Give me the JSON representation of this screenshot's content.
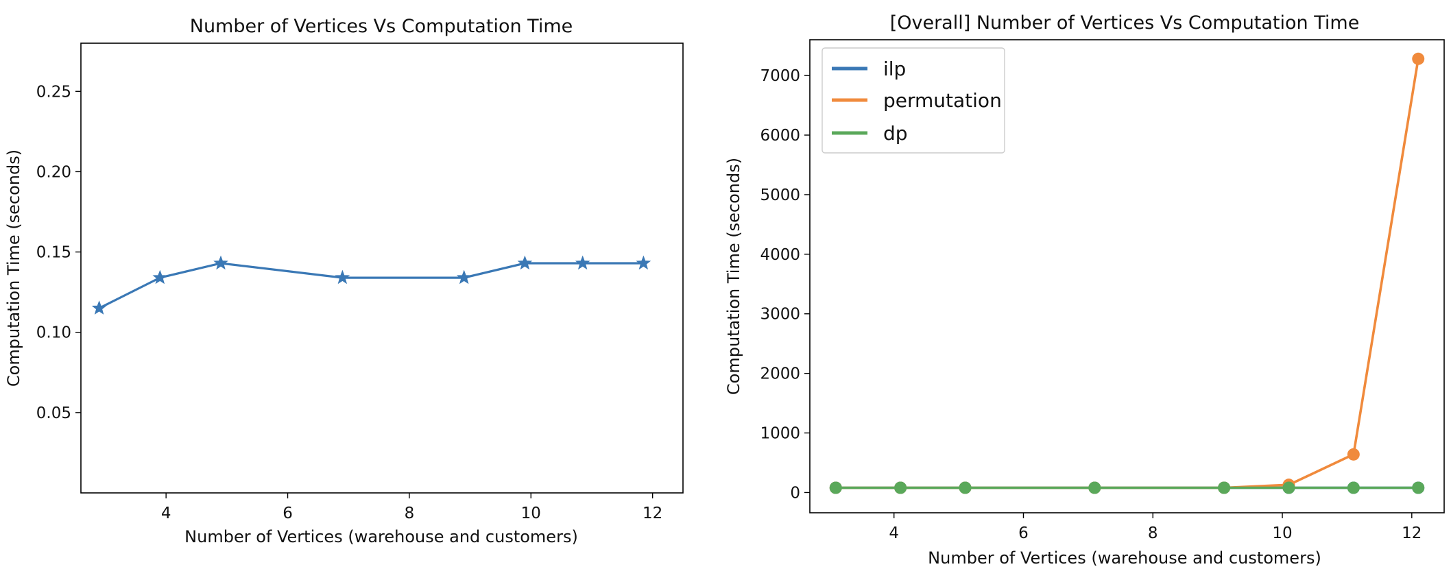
{
  "chart_data": [
    {
      "type": "line",
      "title": "Number of Vertices Vs Computation Time",
      "xlabel": "Number of Vertices (warehouse and customers)",
      "ylabel": "Computation Time (seconds)",
      "xlim": [
        2.6,
        12.5
      ],
      "ylim": [
        0.0,
        0.28
      ],
      "xticks": [
        4,
        6,
        8,
        10,
        12
      ],
      "yticks": [
        0.05,
        0.1,
        0.15,
        0.2,
        0.25
      ],
      "ytick_labels": [
        "0.05",
        "0.10",
        "0.15",
        "0.20",
        "0.25"
      ],
      "marker": "star",
      "color": "#3a78b5",
      "series": [
        {
          "x": [
            2.9,
            3.9,
            4.9,
            6.9,
            8.9,
            9.9,
            10.85,
            11.85
          ],
          "values": [
            0.115,
            0.134,
            0.143,
            0.134,
            0.134,
            0.143,
            0.143,
            0.143
          ]
        }
      ]
    },
    {
      "type": "line",
      "title": "[Overall] Number of Vertices Vs Computation Time",
      "xlabel": "Number of Vertices (warehouse and customers)",
      "ylabel": "Computation Time (seconds)",
      "xlim": [
        2.7,
        12.5
      ],
      "ylim": [
        -340,
        7600
      ],
      "xticks": [
        4,
        6,
        8,
        10,
        12
      ],
      "yticks": [
        0,
        1000,
        2000,
        3000,
        4000,
        5000,
        6000,
        7000
      ],
      "legend_position": "top-left",
      "series": [
        {
          "name": "ilp",
          "color": "#3a78b5",
          "x": [
            3.1,
            4.1,
            5.1,
            7.1,
            9.1,
            10.1,
            11.1,
            12.1
          ],
          "values": [
            80,
            80,
            80,
            80,
            80,
            80,
            80,
            80
          ]
        },
        {
          "name": "permutation",
          "color": "#f08a3c",
          "x": [
            3.1,
            4.1,
            5.1,
            7.1,
            9.1,
            10.1,
            11.1,
            12.1
          ],
          "values": [
            80,
            80,
            80,
            80,
            80,
            130,
            640,
            7280
          ]
        },
        {
          "name": "dp",
          "color": "#5aa85a",
          "x": [
            3.1,
            4.1,
            5.1,
            7.1,
            9.1,
            10.1,
            11.1,
            12.1
          ],
          "values": [
            80,
            80,
            80,
            80,
            80,
            80,
            80,
            80
          ]
        }
      ]
    }
  ]
}
